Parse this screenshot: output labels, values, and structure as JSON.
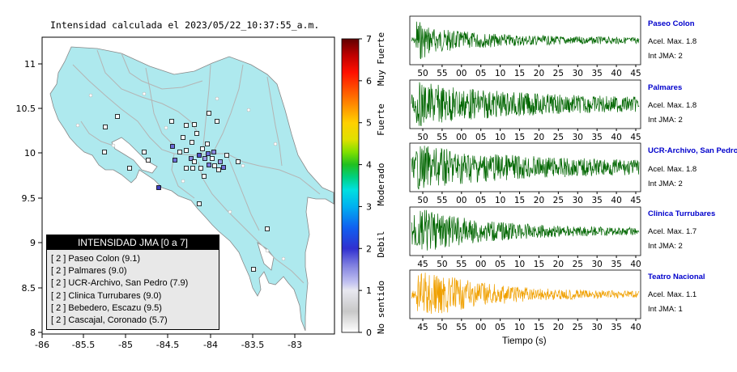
{
  "map": {
    "title": "Intensidad calculada el 2023/05/22_10:37:55_a.m.",
    "lon_ticks": [
      "-86",
      "-85.5",
      "-85",
      "-84.5",
      "-84",
      "-83.5",
      "-83"
    ],
    "lat_ticks": [
      "11",
      "10.5",
      "10",
      "9.5",
      "9",
      "8.5",
      "8"
    ],
    "colors": {
      "land": "#aee9ee",
      "sea": "#ffffff",
      "roads": "#b4b4b4"
    }
  },
  "legend": {
    "title": "INTENSIDAD JMA [0 a 7]",
    "items": [
      "[ 2 ]  Paseo Colon (9.1)",
      "[ 2 ]  Palmares (9.0)",
      "[ 2 ]  UCR-Archivo, San Pedro (7.9)",
      "[ 2 ]  Clinica Turrubares (9.0)",
      "[ 2 ]  Bebedero, Escazu (9.5)",
      "[ 2 ]  Cascajal, Coronado (5.7)"
    ]
  },
  "colorbar": {
    "ticks": [
      "0",
      "1",
      "2",
      "3",
      "4",
      "5",
      "6",
      "7"
    ],
    "category_labels": [
      "No sentido",
      "Debil",
      "Moderado",
      "Fuerte",
      "Muy Fuerte"
    ],
    "range": [
      0,
      7
    ]
  },
  "seismograms": {
    "x_label": "Tiempo (s)",
    "stations": [
      {
        "name": "Paseo Colon",
        "accel": "Acel. Max. 1.8",
        "jma": "Int JMA: 2",
        "color": "#006600",
        "ticks": [
          "50",
          "55",
          "00",
          "05",
          "10",
          "15",
          "20",
          "25",
          "30",
          "35",
          "40",
          "45"
        ]
      },
      {
        "name": "Palmares",
        "accel": "Acel. Max. 1.8",
        "jma": "Int JMA: 2",
        "color": "#006600",
        "ticks": [
          "50",
          "55",
          "00",
          "05",
          "10",
          "15",
          "20",
          "25",
          "30",
          "35",
          "40",
          "45"
        ]
      },
      {
        "name": "UCR-Archivo, San Pedro",
        "accel": "Acel. Max. 1.8",
        "jma": "Int JMA: 2",
        "color": "#006600",
        "ticks": [
          "50",
          "55",
          "00",
          "05",
          "10",
          "15",
          "20",
          "25",
          "30",
          "35",
          "40",
          "45"
        ]
      },
      {
        "name": "Clinica Turrubares",
        "accel": "Acel. Max. 1.7",
        "jma": "Int JMA: 2",
        "color": "#006600",
        "ticks": [
          "45",
          "50",
          "55",
          "00",
          "05",
          "10",
          "15",
          "20",
          "25",
          "30",
          "35",
          "40"
        ]
      },
      {
        "name": "Teatro Nacional",
        "accel": "Acel. Max. 1.1",
        "jma": "Int JMA: 1",
        "color": "#f0a000",
        "ticks": [
          "45",
          "50",
          "55",
          "00",
          "05",
          "10",
          "15",
          "20",
          "25",
          "30",
          "35",
          "40"
        ]
      }
    ]
  }
}
